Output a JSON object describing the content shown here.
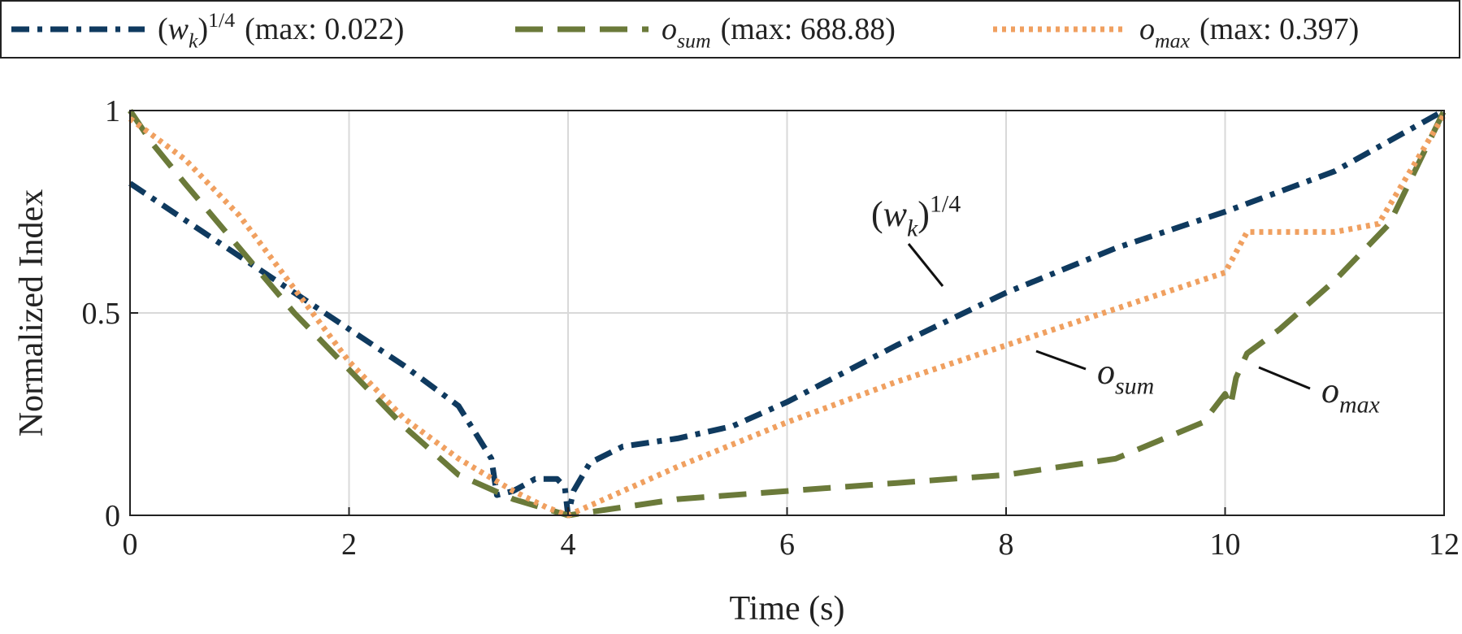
{
  "chart_data": {
    "type": "line",
    "xlabel": "Time (s)",
    "ylabel": "Normalized Index",
    "xlim": [
      0,
      12
    ],
    "ylim": [
      0,
      1
    ],
    "x_ticks": [
      "0",
      "2",
      "4",
      "6",
      "8",
      "10",
      "12"
    ],
    "y_ticks": [
      "0",
      "0.5",
      "1"
    ],
    "grid": true,
    "legend_position": "top, outside plot",
    "series": [
      {
        "name": "(w_k)^{1/4} (max: 0.022)",
        "legend_base": "(w",
        "legend_sub": "k",
        "legend_close": ")",
        "legend_sup": "1/4",
        "legend_max": "(max:  0.022)",
        "color": "#0f3a5f",
        "style": "dashdot",
        "points": [
          [
            0,
            0.82
          ],
          [
            0.5,
            0.73
          ],
          [
            1,
            0.64
          ],
          [
            1.5,
            0.55
          ],
          [
            2,
            0.46
          ],
          [
            2.5,
            0.37
          ],
          [
            3,
            0.27
          ],
          [
            3.3,
            0.14
          ],
          [
            3.35,
            0.05
          ],
          [
            3.5,
            0.06
          ],
          [
            3.7,
            0.09
          ],
          [
            3.9,
            0.09
          ],
          [
            3.97,
            0.07
          ],
          [
            4.0,
            0.0
          ],
          [
            4.05,
            0.06
          ],
          [
            4.2,
            0.13
          ],
          [
            4.5,
            0.17
          ],
          [
            5,
            0.19
          ],
          [
            5.5,
            0.22
          ],
          [
            6,
            0.28
          ],
          [
            7,
            0.42
          ],
          [
            8,
            0.55
          ],
          [
            9,
            0.66
          ],
          [
            10,
            0.75
          ],
          [
            11,
            0.85
          ],
          [
            12,
            1.0
          ]
        ]
      },
      {
        "name": "o_sum (max: 688.88)",
        "legend_base": "o",
        "legend_sub": "sum",
        "legend_max": "(max:  688.88)",
        "color": "#6b7a3a",
        "style": "dashed",
        "points": [
          [
            0,
            1.0
          ],
          [
            0.2,
            0.92
          ],
          [
            0.5,
            0.82
          ],
          [
            1,
            0.66
          ],
          [
            1.5,
            0.5
          ],
          [
            2,
            0.36
          ],
          [
            2.5,
            0.22
          ],
          [
            3,
            0.1
          ],
          [
            3.5,
            0.04
          ],
          [
            4,
            0.0
          ],
          [
            5,
            0.04
          ],
          [
            6,
            0.06
          ],
          [
            7,
            0.08
          ],
          [
            8,
            0.1
          ],
          [
            9,
            0.14
          ],
          [
            9.8,
            0.23
          ],
          [
            10,
            0.3
          ],
          [
            10.05,
            0.27
          ],
          [
            10.1,
            0.34
          ],
          [
            10.2,
            0.4
          ],
          [
            10.5,
            0.46
          ],
          [
            11,
            0.58
          ],
          [
            11.5,
            0.72
          ],
          [
            12,
            1.0
          ]
        ]
      },
      {
        "name": "o_max (max: 0.397)",
        "legend_base": "o",
        "legend_sub": "max",
        "legend_max": "(max:  0.397)",
        "color": "#f0a060",
        "style": "dotted",
        "points": [
          [
            0,
            0.98
          ],
          [
            0.5,
            0.88
          ],
          [
            1,
            0.74
          ],
          [
            1.5,
            0.56
          ],
          [
            2,
            0.38
          ],
          [
            2.5,
            0.24
          ],
          [
            3,
            0.14
          ],
          [
            3.5,
            0.06
          ],
          [
            3.8,
            0.02
          ],
          [
            4,
            0.0
          ],
          [
            4.5,
            0.06
          ],
          [
            5,
            0.12
          ],
          [
            6,
            0.23
          ],
          [
            7,
            0.33
          ],
          [
            8,
            0.42
          ],
          [
            9,
            0.51
          ],
          [
            10,
            0.6
          ],
          [
            10.2,
            0.7
          ],
          [
            10.5,
            0.7
          ],
          [
            11,
            0.7
          ],
          [
            11.4,
            0.72
          ],
          [
            12,
            0.99
          ]
        ]
      }
    ],
    "annotations": [
      {
        "series": 0,
        "base": "(w",
        "sub": "k",
        "close": ")",
        "sup": "1/4"
      },
      {
        "series": 1,
        "base": "o",
        "sub": "sum"
      },
      {
        "series": 2,
        "base": "o",
        "sub": "max"
      }
    ]
  }
}
